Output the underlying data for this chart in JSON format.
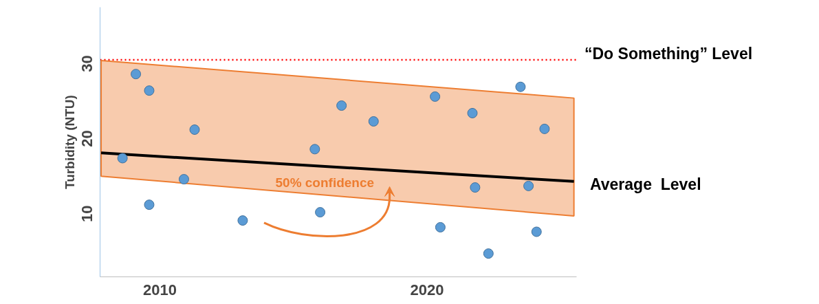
{
  "chart_data": {
    "type": "scatter",
    "ylabel": "Turbidity (NTU)",
    "xlim": [
      2007.76,
      2025.6
    ],
    "xticks": [
      2010,
      2020
    ],
    "ylim": [
      1.6,
      37.5
    ],
    "yticks": [
      10,
      20,
      30
    ],
    "grid": false,
    "series": [
      {
        "type": "line",
        "name": "Average  Level",
        "color": "#000000",
        "x": [
          2007.8,
          2025.5
        ],
        "values": [
          18.1,
          14.3
        ],
        "lower": [
          15.0,
          9.7
        ],
        "upper": [
          30.4,
          25.4
        ]
      },
      {
        "color": "#5b9bd5",
        "x": [
          2008.6,
          2009.1,
          2009.6,
          2009.6,
          2010.9,
          2011.3,
          2013.1,
          2015.8,
          2016.0,
          2016.8,
          2018.0,
          2020.3,
          2020.5,
          2021.7,
          2021.8,
          2022.3,
          2023.5,
          2023.8,
          2024.1,
          2024.4
        ],
        "values": [
          17.4,
          28.6,
          26.4,
          11.2,
          14.6,
          21.2,
          9.1,
          18.6,
          10.2,
          24.4,
          22.3,
          25.6,
          8.2,
          23.4,
          13.5,
          4.7,
          26.9,
          13.7,
          7.6,
          21.3
        ]
      }
    ],
    "ref_lines": [
      {
        "axis": "y",
        "value": 30.5,
        "label": "“Do Something” Level",
        "color": "#ff0000",
        "line_style": "dotted"
      }
    ],
    "annotations": [
      "50% confidence"
    ]
  }
}
